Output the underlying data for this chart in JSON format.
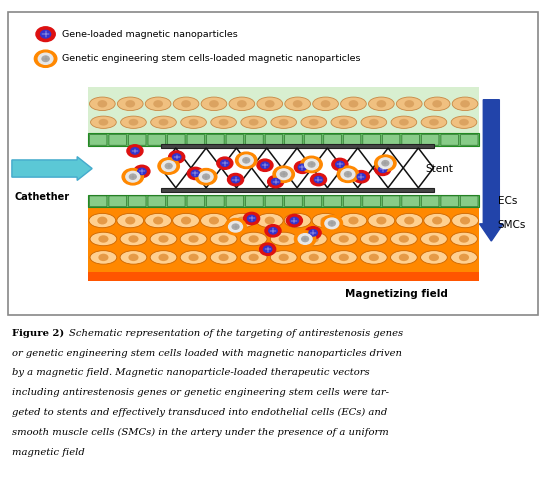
{
  "background_color": "#ffffff",
  "legend_item1_text": "Gene-loaded magnetic nanoparticles",
  "legend_item2_text": "Genetic engineering stem cells-loaded magnetic nanoparticles",
  "cathether_label": "Cathether",
  "stent_label": "Stent",
  "ecs_label": "ECs",
  "smcs_label": "SMCs",
  "mag_label": "Magnetizing field",
  "particle_red_outer": "#dd1111",
  "particle_red_inner": "#3333cc",
  "particle_orange_outer": "#ff8800",
  "particle_orange_inner": "#cccccc",
  "arrow_cyan": "#5bc8d6",
  "arrow_blue": "#2244aa",
  "stent_bar_color": "#444444",
  "stent_mesh_color": "#111111",
  "ec_stripe_color": "#66bb66",
  "ec_cell_color": "#88cc88",
  "top_tissue_bg": "#dff0d0",
  "top_cell_color": "#f0c080",
  "top_cell_outline": "#c88844",
  "smc_bg_color": "#ff8800",
  "smc_cell_color": "#ffd090",
  "smc_cell_outline": "#cc6600",
  "smc_bar_color": "#ff5500",
  "diagram_border": "#aaaaaa",
  "caption_text": "Schematic representation of the targeting of antirestenosis genes or genetic engineering stem cells loaded with magnetic nanoparticles driven by a magnetic field. Magnetic nanoparticle-loaded therapeutic vectors including antirestenosis genes or genetic engineering stem cells were tar-geted to stents and effectively transduced into endothelial cells (ECs) and smooth muscle cells (SMCs) in the artery under the presence of a uniform magnetic field"
}
